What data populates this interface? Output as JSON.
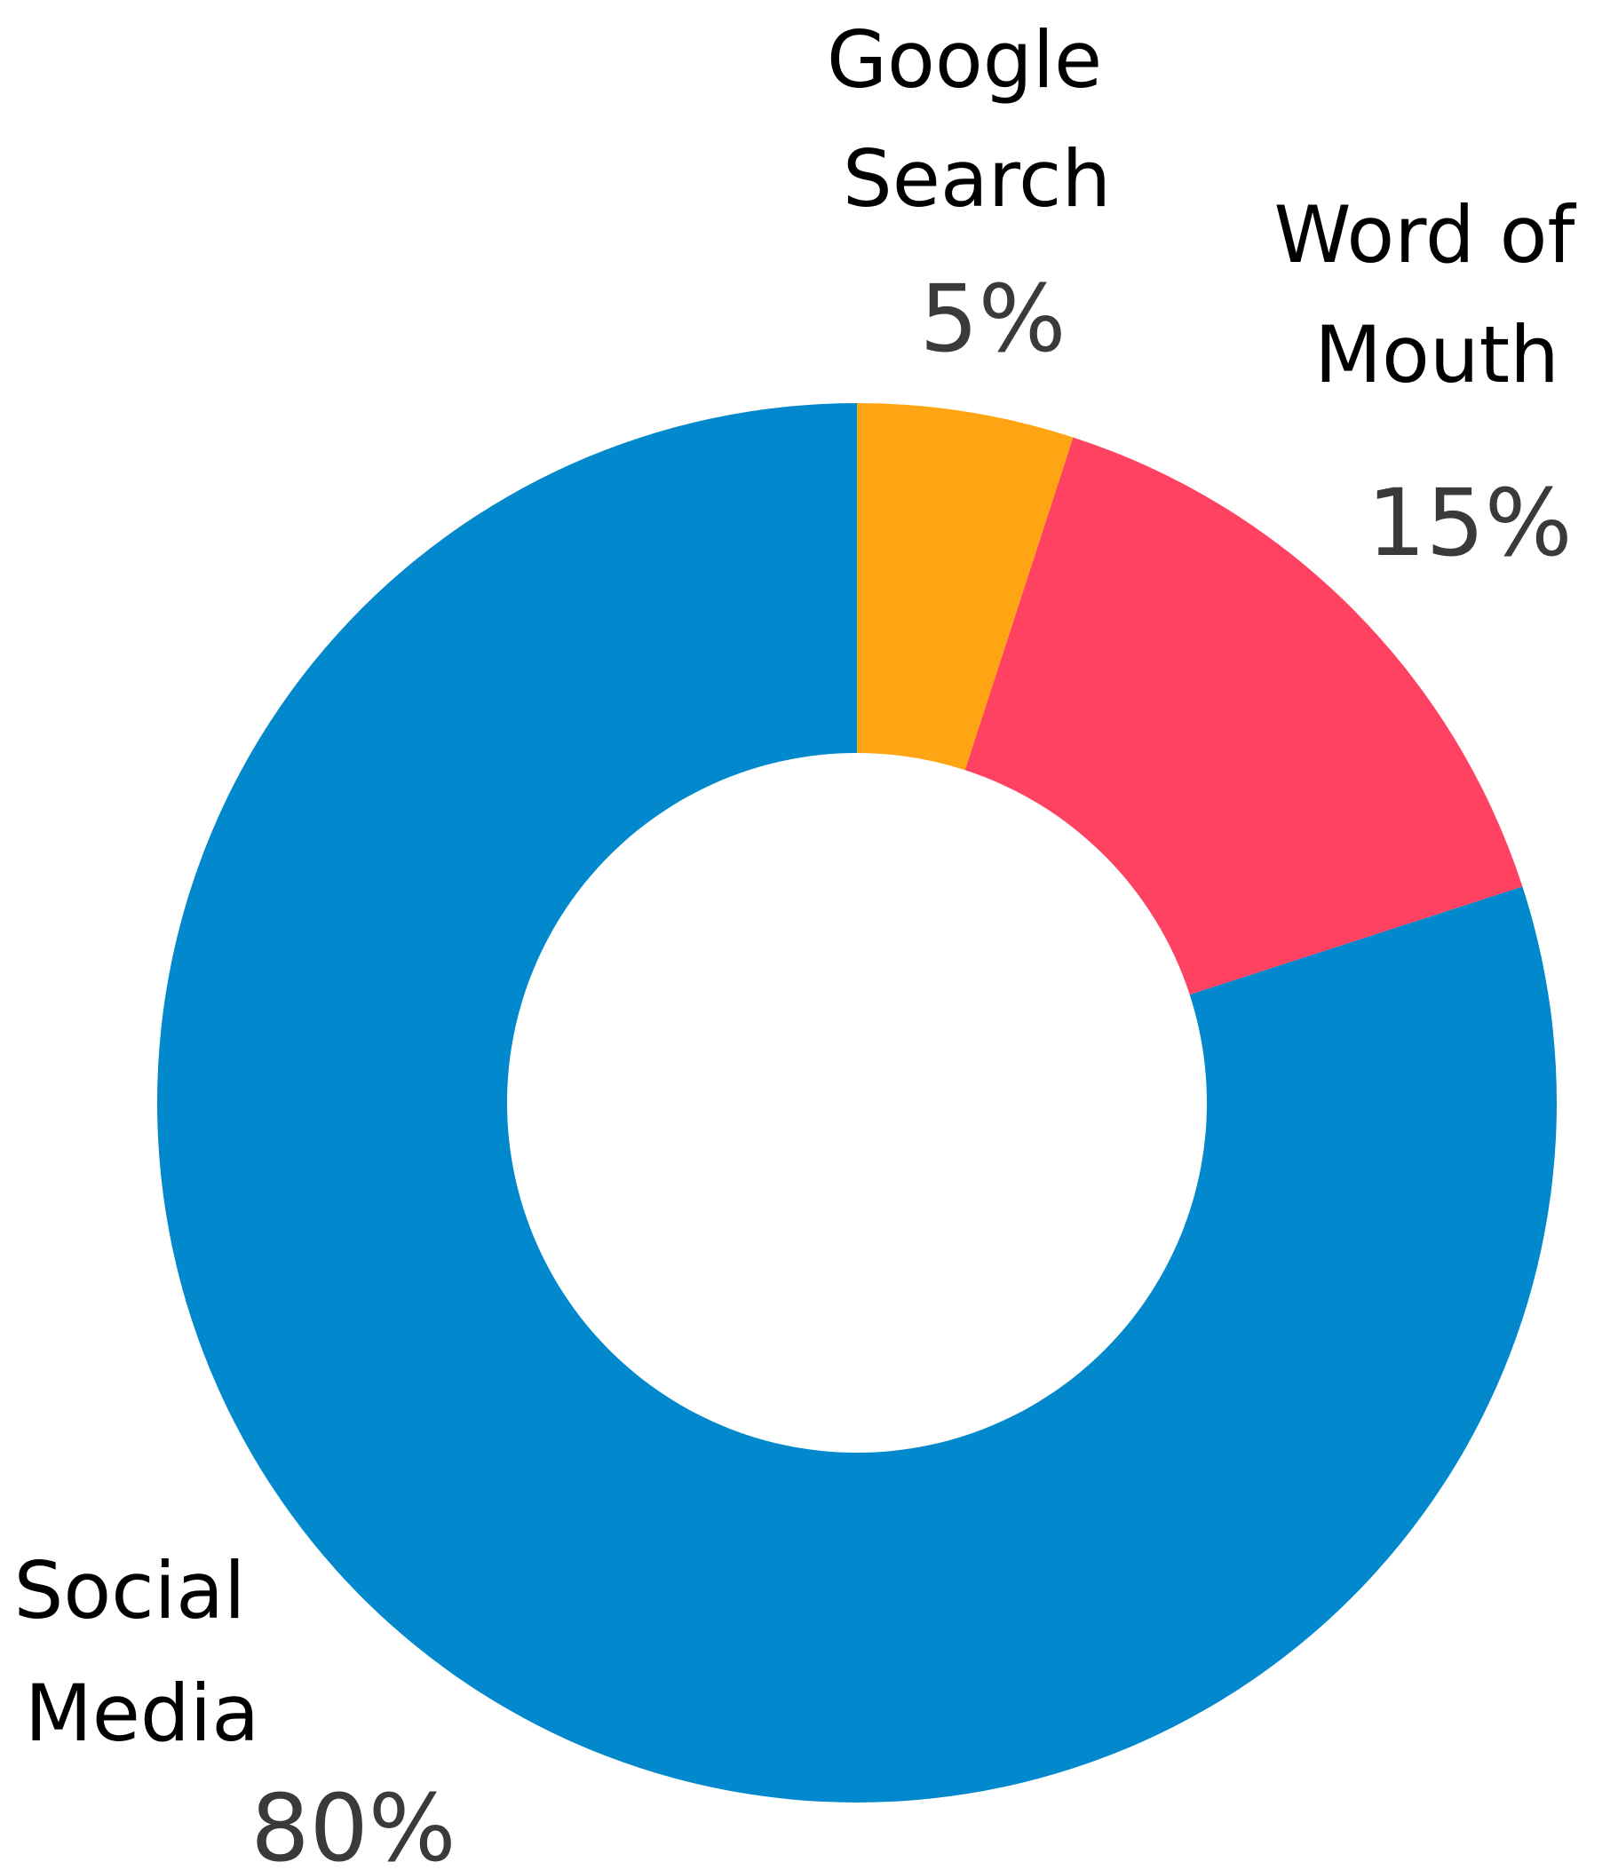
{
  "chart_data": {
    "type": "pie",
    "variant": "donut",
    "categories": [
      "Google Search",
      "Word of Mouth",
      "Social Media"
    ],
    "values": [
      5,
      15,
      80
    ],
    "value_labels": [
      "5%",
      "15%",
      "80%"
    ],
    "label_lines": [
      [
        "Google",
        "Search"
      ],
      [
        "Word of",
        "Mouth"
      ],
      [
        "Social",
        "Media"
      ]
    ],
    "colors": [
      "#FFA412",
      "#FF4162",
      "#0288CC"
    ],
    "start": "12 o'clock",
    "direction": "clockwise",
    "legend": "none",
    "title": ""
  }
}
